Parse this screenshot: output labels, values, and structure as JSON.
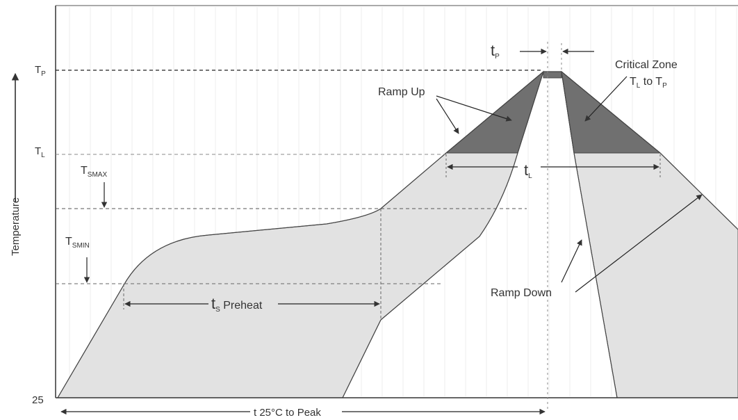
{
  "axis": {
    "y_label": "Temperature",
    "y_ticks": {
      "tp": {
        "main": "T",
        "sub": "P"
      },
      "tl": {
        "main": "T",
        "sub": "L"
      },
      "base": "25"
    },
    "x_label": "t 25°C to Peak"
  },
  "labels": {
    "tsmax": {
      "main": "T",
      "sub": "SMAX"
    },
    "tsmin": {
      "main": "T",
      "sub": "SMIN"
    },
    "tp": {
      "main": "t",
      "sub": "P"
    },
    "tl": {
      "main": "t",
      "sub": "L"
    },
    "ts_preheat": {
      "main": "t",
      "sub": "S",
      "rest": " Preheat"
    },
    "ramp_up": "Ramp Up",
    "ramp_down": "Ramp Down",
    "critical_zone": {
      "line1": "Critical Zone",
      "line2_a": "T",
      "line2_a_sub": "L",
      "line2_mid": " to T",
      "line2_b_sub": "P"
    }
  },
  "colors": {
    "fill_light": "#e2e2e2",
    "fill_dark": "#707070",
    "line": "#444444",
    "grid": "#eeeeee"
  }
}
